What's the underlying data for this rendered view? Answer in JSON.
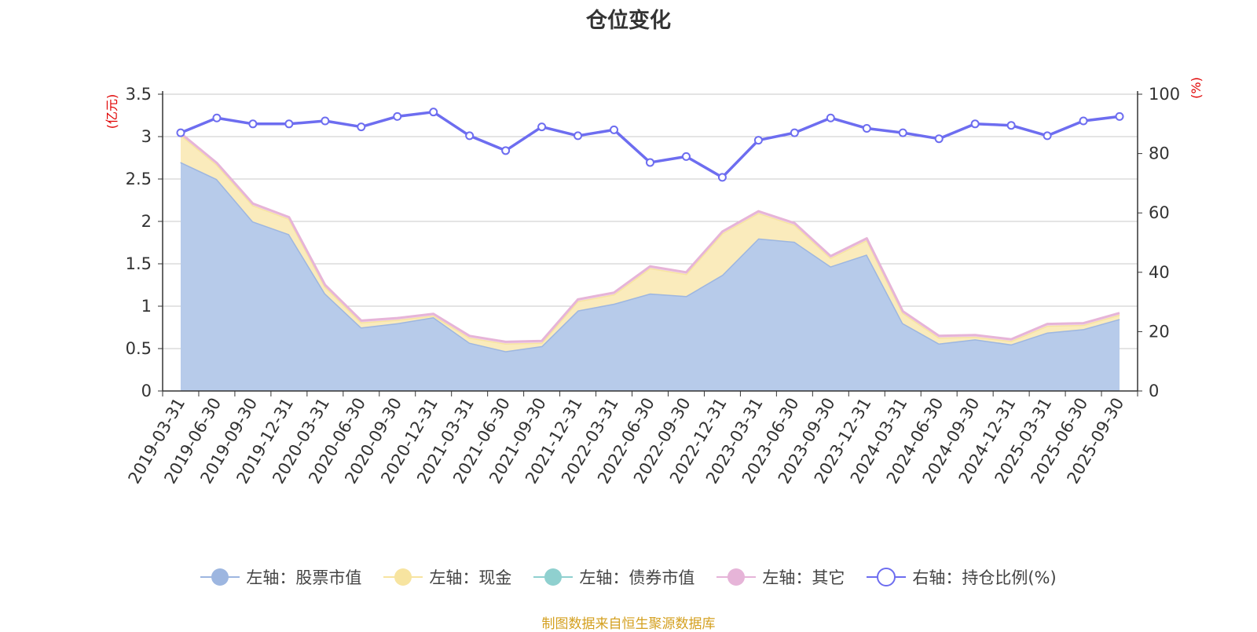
{
  "title": "仓位变化",
  "source": "制图数据来自恒生聚源数据库",
  "legend": [
    {
      "label": "左轴：股票市值",
      "color": "#9db6e0",
      "icon": "filled-circle-icon"
    },
    {
      "label": "左轴：现金",
      "color": "#f7e4a0",
      "icon": "filled-circle-icon"
    },
    {
      "label": "左轴：债券市值",
      "color": "#8fd0cf",
      "icon": "filled-circle-icon"
    },
    {
      "label": "左轴：其它",
      "color": "#e6b4d8",
      "icon": "filled-circle-icon"
    },
    {
      "label": "右轴：持仓比例(%)",
      "color": "#6d6df0",
      "icon": "hollow-circle-icon"
    }
  ],
  "chart_data": {
    "type": "area",
    "categories": [
      "2019-03-31",
      "2019-06-30",
      "2019-09-30",
      "2019-12-31",
      "2020-03-31",
      "2020-06-30",
      "2020-09-30",
      "2020-12-31",
      "2021-03-31",
      "2021-06-30",
      "2021-09-30",
      "2021-12-31",
      "2022-03-31",
      "2022-06-30",
      "2022-09-30",
      "2022-12-31",
      "2023-03-31",
      "2023-06-30",
      "2023-09-30",
      "2023-12-31",
      "2024-03-31",
      "2024-06-30",
      "2024-09-30",
      "2024-12-31",
      "2025-03-31",
      "2025-06-30",
      "2025-09-30"
    ],
    "left_axis": {
      "label": "(亿元)",
      "ticks": [
        "0",
        "0.5",
        "1",
        "1.5",
        "2",
        "2.5",
        "3",
        "3.5"
      ],
      "min": 0,
      "max": 3.5
    },
    "right_axis": {
      "label": "(%)",
      "ticks": [
        "0",
        "20",
        "40",
        "60",
        "80",
        "100"
      ],
      "min": 0,
      "max": 100
    },
    "series": [
      {
        "name": "左轴：股票市值",
        "axis": "left",
        "stack": true,
        "fill": "#b7cbea",
        "line": "#9db6e0",
        "values": [
          2.7,
          2.5,
          2.0,
          1.85,
          1.15,
          0.75,
          0.8,
          0.87,
          0.57,
          0.47,
          0.53,
          0.95,
          1.03,
          1.15,
          1.12,
          1.37,
          1.8,
          1.76,
          1.47,
          1.61,
          0.8,
          0.56,
          0.61,
          0.55,
          0.69,
          0.73,
          0.85
        ]
      },
      {
        "name": "左轴：现金",
        "axis": "left",
        "stack": true,
        "fill": "#faebbc",
        "line": "#f7e4a0",
        "values": [
          0.32,
          0.17,
          0.19,
          0.18,
          0.08,
          0.06,
          0.04,
          0.02,
          0.06,
          0.09,
          0.04,
          0.11,
          0.11,
          0.3,
          0.26,
          0.49,
          0.3,
          0.2,
          0.1,
          0.17,
          0.12,
          0.07,
          0.03,
          0.04,
          0.08,
          0.05,
          0.05
        ]
      },
      {
        "name": "左轴：债券市值",
        "axis": "left",
        "stack": true,
        "fill": "#b7e1e0",
        "line": "#8fd0cf",
        "values": [
          0,
          0,
          0,
          0,
          0,
          0,
          0,
          0,
          0,
          0,
          0,
          0,
          0,
          0,
          0,
          0,
          0,
          0,
          0,
          0,
          0,
          0,
          0,
          0,
          0,
          0,
          0
        ]
      },
      {
        "name": "左轴：其它",
        "axis": "left",
        "stack": true,
        "fill": "#f1d6ea",
        "line": "#e6b4d8",
        "values": [
          0.02,
          0.02,
          0.02,
          0.02,
          0.02,
          0.02,
          0.02,
          0.02,
          0.02,
          0.02,
          0.02,
          0.02,
          0.02,
          0.02,
          0.02,
          0.02,
          0.02,
          0.02,
          0.02,
          0.02,
          0.02,
          0.02,
          0.02,
          0.02,
          0.02,
          0.02,
          0.02
        ]
      },
      {
        "name": "右轴：持仓比例(%)",
        "axis": "right",
        "stack": false,
        "line": "#6d6df0",
        "values": [
          87,
          92,
          90,
          90,
          91,
          89,
          92.5,
          94,
          86,
          81,
          89,
          86,
          88,
          77,
          79,
          72,
          84.5,
          87,
          92,
          88.5,
          87,
          85,
          90,
          89.5,
          86,
          91,
          92.5
        ]
      }
    ]
  }
}
